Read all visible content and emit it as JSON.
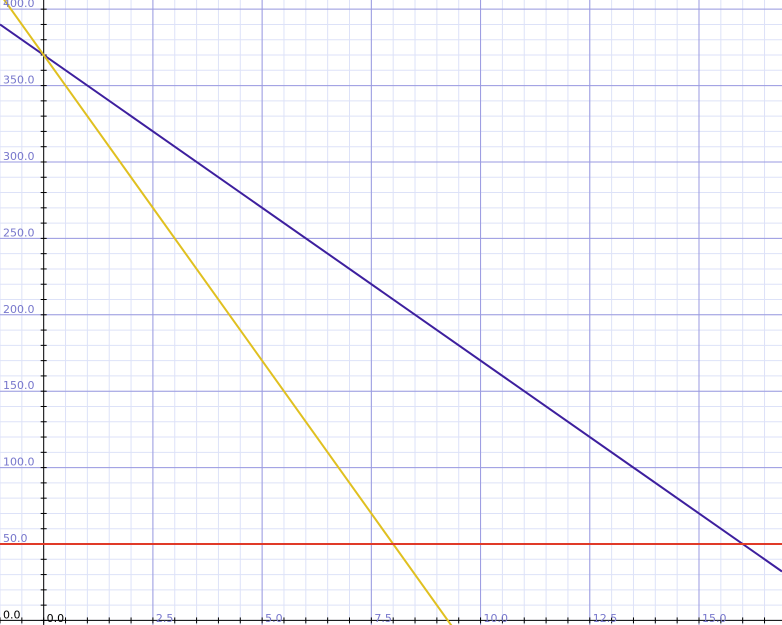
{
  "chart_data": {
    "type": "line",
    "title": "",
    "xlabel": "",
    "ylabel": "",
    "xlim": [
      -1.0,
      16.9
    ],
    "ylim": [
      -3.0,
      406.0
    ],
    "grid": true,
    "x_ticks": [
      0.0,
      2.5,
      5.0,
      7.5,
      10.0,
      12.5,
      15.0
    ],
    "x_tick_labels": [
      "0.0",
      "2.5",
      "5.0",
      "7.5",
      "10.0",
      "12.5",
      "15.0"
    ],
    "y_ticks": [
      0.0,
      50.0,
      100.0,
      150.0,
      200.0,
      250.0,
      300.0,
      350.0,
      400.0
    ],
    "y_tick_labels": [
      "0.0",
      "50.0",
      "100.0",
      "150.0",
      "200.0",
      "250.0",
      "300.0",
      "350.0",
      "400.0"
    ],
    "series": [
      {
        "color": "#3d1f9e",
        "x": [
          -1.0,
          16.9
        ],
        "y": [
          390.0,
          32.0
        ]
      },
      {
        "color": "#e0c020",
        "x": [
          -1.0,
          9.5
        ],
        "y": [
          410.0,
          -10.0
        ]
      },
      {
        "color": "#e03a28",
        "x": [
          -1.0,
          16.9
        ],
        "y": [
          50.0,
          50.0
        ]
      }
    ]
  },
  "colors": {
    "major_grid": "#9a9ae0",
    "minor_grid": "#dde2f8",
    "axis": "#000000",
    "tick_label": "#7777cc",
    "origin_label": "#000000"
  }
}
